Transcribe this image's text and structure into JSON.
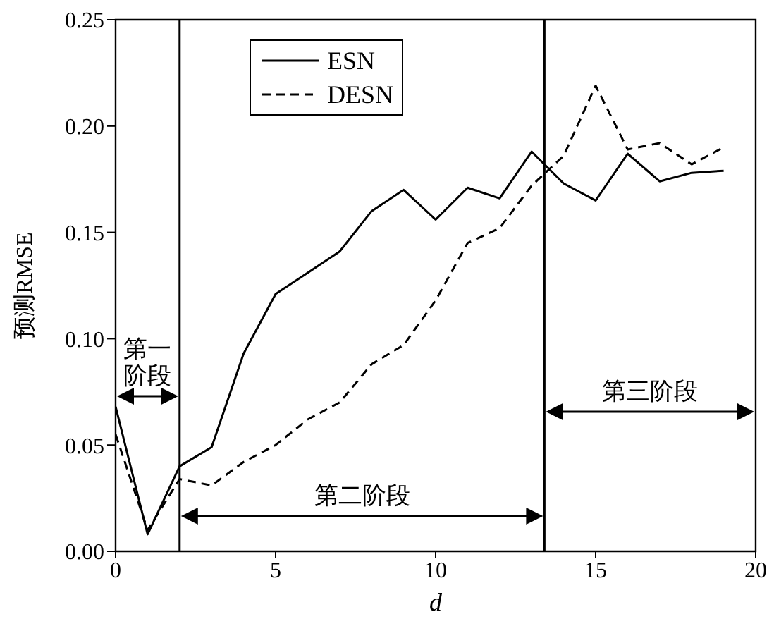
{
  "chart_data": {
    "type": "line",
    "xlabel": "d",
    "ylabel": "预测RMSE",
    "x": [
      0,
      1,
      2,
      3,
      4,
      5,
      6,
      7,
      8,
      9,
      10,
      11,
      12,
      13,
      14,
      15,
      16,
      17,
      18,
      19
    ],
    "series": [
      {
        "name": "ESN",
        "color": "#000000",
        "line_style": "solid",
        "values": [
          0.068,
          0.008,
          0.04,
          0.049,
          0.093,
          0.121,
          0.131,
          0.141,
          0.16,
          0.17,
          0.156,
          0.171,
          0.166,
          0.188,
          0.173,
          0.165,
          0.187,
          0.174,
          0.178,
          0.179
        ]
      },
      {
        "name": "DESN",
        "color": "#000000",
        "line_style": "dashed",
        "values": [
          0.055,
          0.01,
          0.034,
          0.031,
          0.042,
          0.05,
          0.062,
          0.07,
          0.088,
          0.097,
          0.118,
          0.145,
          0.152,
          0.172,
          0.186,
          0.219,
          0.189,
          0.192,
          0.182,
          0.19
        ]
      }
    ],
    "xlim": [
      0,
      20
    ],
    "xticks": [
      0,
      5,
      10,
      15,
      20
    ],
    "ylim": [
      0,
      0.25
    ],
    "yticks": [
      {
        "value": 0,
        "label": "0.00"
      },
      {
        "value": 0.05,
        "label": "0.05"
      },
      {
        "value": 0.1,
        "label": "0.10"
      },
      {
        "value": 0.15,
        "label": "0.15"
      },
      {
        "value": 0.2,
        "label": "0.20"
      },
      {
        "value": 0.25,
        "label": "0.25"
      }
    ],
    "ref_lines": [
      {
        "axis": "x",
        "value": 2,
        "color": "#000000"
      },
      {
        "axis": "x",
        "value": 13.4,
        "color": "#000000"
      }
    ],
    "annotations": [
      "第一阶段",
      "第二阶段",
      "第三阶段"
    ],
    "legend": "top left",
    "grid": false,
    "marker": "none"
  }
}
